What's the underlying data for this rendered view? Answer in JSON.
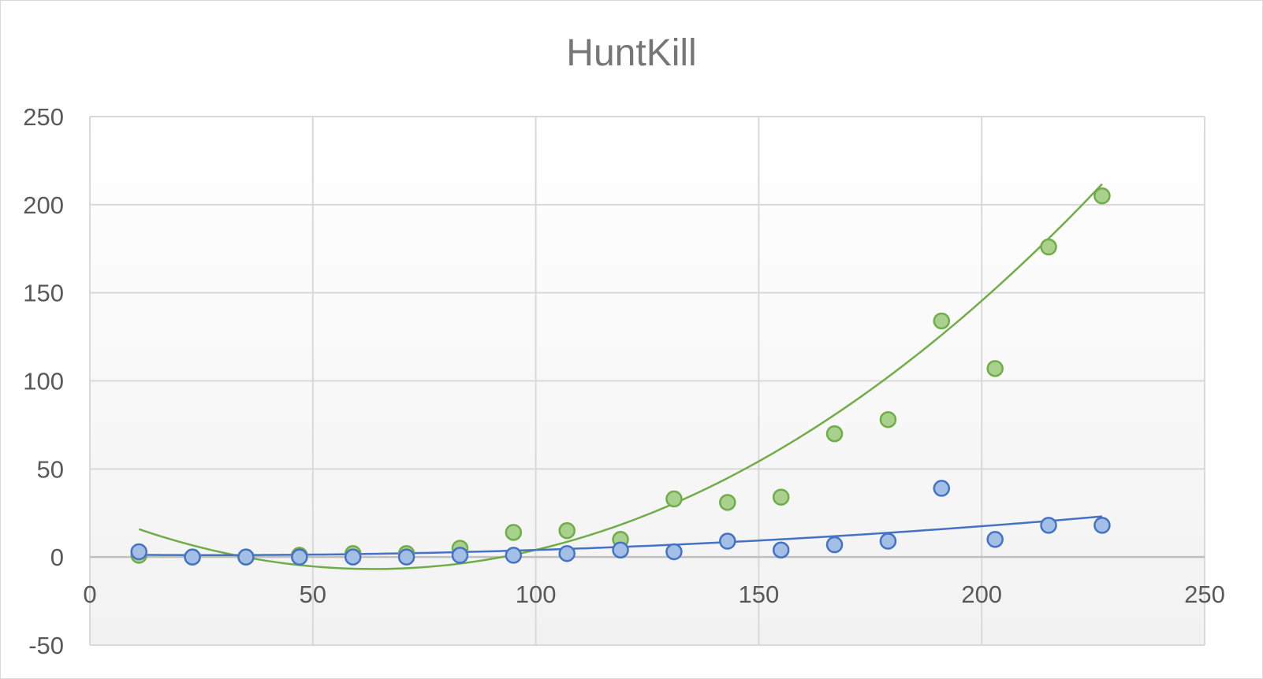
{
  "chart_data": {
    "type": "scatter",
    "title": "HuntKill",
    "xlim": [
      0,
      250
    ],
    "ylim": [
      -50,
      250
    ],
    "x_ticks": [
      "0",
      "50",
      "100",
      "150",
      "200",
      "250"
    ],
    "y_ticks": [
      "-50",
      "0",
      "50",
      "100",
      "150",
      "200",
      "250"
    ],
    "grid": true,
    "legend": "none",
    "series": [
      {
        "color": "#70ad47",
        "fill": "#a9d18e",
        "points": [
          [
            11,
            1
          ],
          [
            23,
            0
          ],
          [
            35,
            0
          ],
          [
            47,
            1
          ],
          [
            59,
            2
          ],
          [
            71,
            2
          ],
          [
            83,
            5
          ],
          [
            95,
            14
          ],
          [
            107,
            15
          ],
          [
            119,
            10
          ],
          [
            131,
            33
          ],
          [
            143,
            31
          ],
          [
            155,
            34
          ],
          [
            167,
            70
          ],
          [
            179,
            78
          ],
          [
            191,
            134
          ],
          [
            203,
            107
          ],
          [
            215,
            176
          ],
          [
            227,
            205
          ]
        ],
        "trendline": {
          "type": "poly2",
          "coeffs": [
            26.25,
            -1.04,
            0.00818
          ],
          "x_range": [
            11,
            227
          ]
        }
      },
      {
        "color": "#4472c4",
        "fill": "#a4bfe6",
        "points": [
          [
            11,
            3
          ],
          [
            23,
            0
          ],
          [
            35,
            0
          ],
          [
            47,
            0
          ],
          [
            59,
            0
          ],
          [
            71,
            0
          ],
          [
            83,
            1
          ],
          [
            95,
            1
          ],
          [
            107,
            2
          ],
          [
            119,
            4
          ],
          [
            131,
            3
          ],
          [
            143,
            9
          ],
          [
            155,
            4
          ],
          [
            167,
            7
          ],
          [
            179,
            9
          ],
          [
            191,
            39
          ],
          [
            203,
            10
          ],
          [
            215,
            18
          ],
          [
            227,
            18
          ]
        ],
        "trendline": {
          "type": "poly2",
          "coeffs": [
            1.5,
            -0.03,
            0.00055
          ],
          "x_range": [
            11,
            227
          ]
        }
      }
    ]
  }
}
